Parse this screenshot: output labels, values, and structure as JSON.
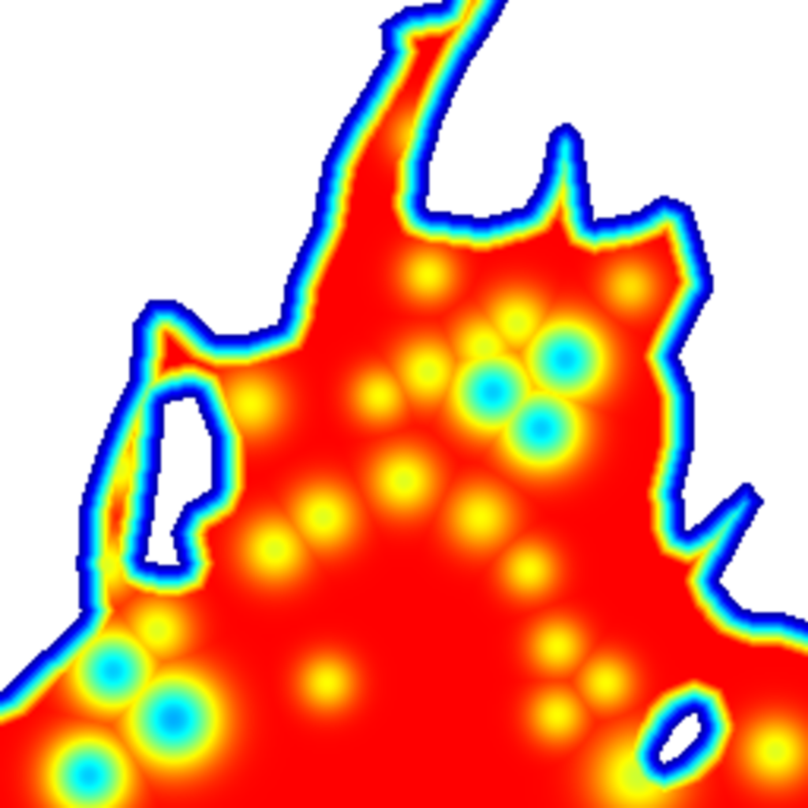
{
  "chart_data": {
    "type": "heatmap",
    "title": "",
    "xlabel": "",
    "ylabel": "",
    "legend": "none",
    "grid": false,
    "colormap": {
      "name": "jet",
      "stops": [
        "#000080",
        "#0000ff",
        "#00ffff",
        "#ffff00",
        "#ff0000"
      ],
      "background": "#ffffff"
    },
    "value_range": [
      0,
      1
    ],
    "fill_region": [
      [
        0.56,
        0.0
      ],
      [
        0.63,
        0.0
      ],
      [
        0.61,
        0.035
      ],
      [
        0.575,
        0.09
      ],
      [
        0.548,
        0.15
      ],
      [
        0.532,
        0.205
      ],
      [
        0.528,
        0.26
      ],
      [
        0.6,
        0.27
      ],
      [
        0.65,
        0.255
      ],
      [
        0.668,
        0.225
      ],
      [
        0.68,
        0.165
      ],
      [
        0.7,
        0.15
      ],
      [
        0.72,
        0.165
      ],
      [
        0.728,
        0.225
      ],
      [
        0.735,
        0.272
      ],
      [
        0.79,
        0.262
      ],
      [
        0.82,
        0.24
      ],
      [
        0.855,
        0.255
      ],
      [
        0.87,
        0.3
      ],
      [
        0.885,
        0.355
      ],
      [
        0.86,
        0.4
      ],
      [
        0.84,
        0.44
      ],
      [
        0.86,
        0.49
      ],
      [
        0.86,
        0.55
      ],
      [
        0.845,
        0.61
      ],
      [
        0.85,
        0.66
      ],
      [
        0.895,
        0.62
      ],
      [
        0.925,
        0.595
      ],
      [
        0.945,
        0.62
      ],
      [
        0.92,
        0.665
      ],
      [
        0.89,
        0.72
      ],
      [
        0.92,
        0.755
      ],
      [
        0.975,
        0.76
      ],
      [
        1.0,
        0.77
      ],
      [
        1.0,
        1.0
      ],
      [
        0.0,
        1.0
      ],
      [
        0.0,
        0.855
      ],
      [
        0.06,
        0.8
      ],
      [
        0.1,
        0.76
      ],
      [
        0.095,
        0.7
      ],
      [
        0.1,
        0.62
      ],
      [
        0.12,
        0.56
      ],
      [
        0.14,
        0.51
      ],
      [
        0.16,
        0.47
      ],
      [
        0.165,
        0.4
      ],
      [
        0.185,
        0.37
      ],
      [
        0.215,
        0.37
      ],
      [
        0.245,
        0.39
      ],
      [
        0.27,
        0.415
      ],
      [
        0.31,
        0.412
      ],
      [
        0.345,
        0.4
      ],
      [
        0.355,
        0.345
      ],
      [
        0.385,
        0.28
      ],
      [
        0.4,
        0.2
      ],
      [
        0.425,
        0.15
      ],
      [
        0.45,
        0.11
      ],
      [
        0.475,
        0.065
      ],
      [
        0.47,
        0.03
      ],
      [
        0.5,
        0.01
      ]
    ],
    "holes": [
      [
        [
          0.205,
          0.5
        ],
        [
          0.24,
          0.49
        ],
        [
          0.26,
          0.54
        ],
        [
          0.262,
          0.605
        ],
        [
          0.228,
          0.625
        ],
        [
          0.212,
          0.66
        ],
        [
          0.222,
          0.7
        ],
        [
          0.18,
          0.695
        ],
        [
          0.19,
          0.64
        ],
        [
          0.198,
          0.58
        ]
      ],
      [
        [
          0.815,
          0.935
        ],
        [
          0.84,
          0.895
        ],
        [
          0.862,
          0.88
        ],
        [
          0.868,
          0.905
        ],
        [
          0.84,
          0.935
        ],
        [
          0.822,
          0.945
        ]
      ]
    ],
    "low_spots": [
      {
        "x": 0.53,
        "y": 0.46,
        "v": 0.72,
        "r": 0.03
      },
      {
        "x": 0.61,
        "y": 0.485,
        "v": 0.45,
        "r": 0.035
      },
      {
        "x": 0.7,
        "y": 0.445,
        "v": 0.45,
        "r": 0.035
      },
      {
        "x": 0.67,
        "y": 0.53,
        "v": 0.45,
        "r": 0.035
      },
      {
        "x": 0.5,
        "y": 0.595,
        "v": 0.72,
        "r": 0.03
      },
      {
        "x": 0.4,
        "y": 0.64,
        "v": 0.72,
        "r": 0.03
      },
      {
        "x": 0.34,
        "y": 0.68,
        "v": 0.72,
        "r": 0.03
      },
      {
        "x": 0.31,
        "y": 0.5,
        "v": 0.75,
        "r": 0.03
      },
      {
        "x": 0.47,
        "y": 0.49,
        "v": 0.75,
        "r": 0.025
      },
      {
        "x": 0.595,
        "y": 0.64,
        "v": 0.75,
        "r": 0.03
      },
      {
        "x": 0.655,
        "y": 0.705,
        "v": 0.75,
        "r": 0.025
      },
      {
        "x": 0.69,
        "y": 0.8,
        "v": 0.75,
        "r": 0.025
      },
      {
        "x": 0.75,
        "y": 0.845,
        "v": 0.75,
        "r": 0.025
      },
      {
        "x": 0.69,
        "y": 0.885,
        "v": 0.75,
        "r": 0.025
      },
      {
        "x": 0.405,
        "y": 0.845,
        "v": 0.75,
        "r": 0.025
      },
      {
        "x": 0.78,
        "y": 0.355,
        "v": 0.78,
        "r": 0.025
      },
      {
        "x": 0.53,
        "y": 0.34,
        "v": 0.75,
        "r": 0.025
      },
      {
        "x": 0.52,
        "y": 0.17,
        "v": 0.75,
        "r": 0.025
      },
      {
        "x": 0.14,
        "y": 0.83,
        "v": 0.45,
        "r": 0.035
      },
      {
        "x": 0.215,
        "y": 0.89,
        "v": 0.42,
        "r": 0.04
      },
      {
        "x": 0.11,
        "y": 0.96,
        "v": 0.45,
        "r": 0.035
      },
      {
        "x": 0.195,
        "y": 0.78,
        "v": 0.72,
        "r": 0.03
      },
      {
        "x": 0.13,
        "y": 0.7,
        "v": 0.72,
        "r": 0.03
      },
      {
        "x": 0.145,
        "y": 0.58,
        "v": 0.72,
        "r": 0.03
      },
      {
        "x": 0.79,
        "y": 0.96,
        "v": 0.7,
        "r": 0.04
      },
      {
        "x": 0.96,
        "y": 0.93,
        "v": 0.72,
        "r": 0.03
      },
      {
        "x": 0.6,
        "y": 0.43,
        "v": 0.72,
        "r": 0.03
      },
      {
        "x": 0.64,
        "y": 0.4,
        "v": 0.72,
        "r": 0.03
      }
    ]
  }
}
